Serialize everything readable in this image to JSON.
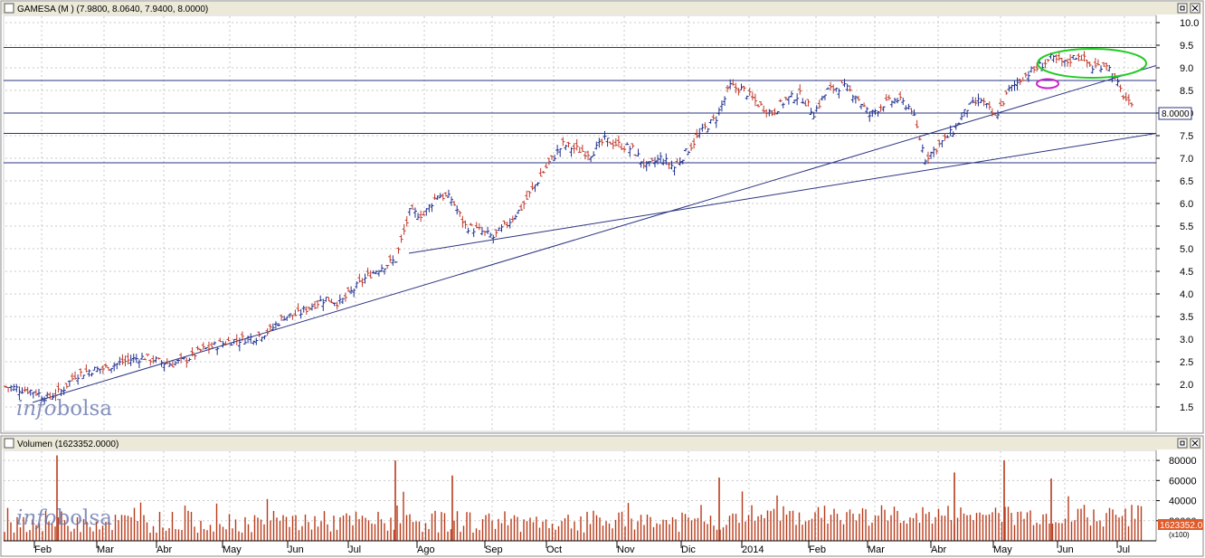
{
  "colors": {
    "frame": "#8a8a8a",
    "grid": "#c8c8c8",
    "titlebar": "#ece9d8",
    "up": "#1f2f8f",
    "down": "#c0392b",
    "trend": "#2a3580",
    "volume": "#b83a1a",
    "green_ellipse": "#22cc22",
    "magenta_ellipse": "#cc22cc",
    "last_volume_bg": "#e05a2a"
  },
  "price_panel": {
    "title": "GAMESA (M ) (7.9800, 8.0640, 7.9400, 8.0000)",
    "last_label": "8.0000",
    "watermark_a": "info",
    "watermark_b": "bolsa"
  },
  "volume_panel": {
    "title": "Volumen (1623352.0000)",
    "last_label": "1623352.0",
    "scale_note": "(x100)",
    "watermark_a": "info",
    "watermark_b": "bolsa"
  },
  "chart_data": {
    "type": "ohlc",
    "title": "GAMESA (M ) (7.9800, 8.0640, 7.9400, 8.0000)",
    "x_months": [
      "Feb",
      "Mar",
      "Abr",
      "May",
      "Jun",
      "Jul",
      "Ago",
      "Sep",
      "Oct",
      "Nov",
      "Dic",
      "2014",
      "Feb",
      "Mar",
      "Abr",
      "May",
      "Jun",
      "Jul"
    ],
    "price_ylim": [
      1.0,
      10.0
    ],
    "price_yticks": [
      1.5,
      2.0,
      2.5,
      3.0,
      3.5,
      4.0,
      4.5,
      5.0,
      5.5,
      6.0,
      6.5,
      7.0,
      7.5,
      8.0,
      8.5,
      9.0,
      9.5,
      10.0
    ],
    "price_ytick_labels": [
      "1.5",
      "2.0",
      "2.5",
      "3.0",
      "3.5",
      "4.0",
      "4.5",
      "5.0",
      "5.5",
      "6.0",
      "6.5",
      "7.0",
      "7.5",
      "8.0",
      "8.5",
      "9.0",
      "9.5",
      "10.0"
    ],
    "grid": true,
    "weeks_approx_close": [
      1.95,
      1.9,
      1.85,
      1.7,
      1.85,
      2.2,
      2.3,
      2.35,
      2.45,
      2.55,
      2.6,
      2.5,
      2.45,
      2.55,
      2.75,
      2.85,
      2.95,
      3.0,
      3.05,
      3.2,
      3.5,
      3.55,
      3.75,
      3.9,
      3.8,
      4.1,
      4.4,
      4.6,
      4.75,
      5.8,
      5.75,
      6.2,
      6.1,
      5.5,
      5.4,
      5.25,
      5.55,
      5.9,
      6.4,
      6.9,
      7.3,
      7.2,
      7.1,
      7.4,
      7.3,
      7.2,
      6.8,
      7.0,
      6.8,
      7.2,
      7.6,
      7.9,
      8.6,
      8.5,
      8.2,
      8.0,
      8.3,
      8.4,
      8.0,
      8.5,
      8.6,
      8.4,
      7.95,
      8.2,
      8.3,
      8.1,
      7.0,
      7.3,
      7.6,
      8.1,
      8.3,
      7.9,
      8.5,
      8.8,
      9.0,
      9.2,
      9.1,
      9.3,
      9.0,
      9.1,
      8.5,
      8.0
    ],
    "horizontal_levels": [
      9.45,
      8.72,
      8.0,
      7.55,
      6.9
    ],
    "trendlines": [
      {
        "from_date": "Feb",
        "from_value": 1.6,
        "to_date": "Jul",
        "to_value": 9.05
      },
      {
        "from_date": "Ago",
        "from_value": 4.9,
        "to_date": "Jul",
        "to_value": 7.55
      }
    ],
    "volume_ylim": [
      0,
      90000
    ],
    "volume_yticks": [
      20000,
      40000,
      60000,
      80000
    ],
    "volume_ytick_labels": [
      "20000",
      "40000",
      "60000",
      "80000"
    ],
    "volume_scale": "x100",
    "volume_spikes_approx": [
      {
        "month": "Feb",
        "value": 85000
      },
      {
        "month": "Jul",
        "value": 80000
      },
      {
        "month": "Ago",
        "value": 65000
      },
      {
        "month": "Dic",
        "value": 63000
      },
      {
        "month": "Abr",
        "value": 68000
      },
      {
        "month": "May",
        "value": 80000
      },
      {
        "month": "May",
        "value": 62000
      }
    ]
  }
}
